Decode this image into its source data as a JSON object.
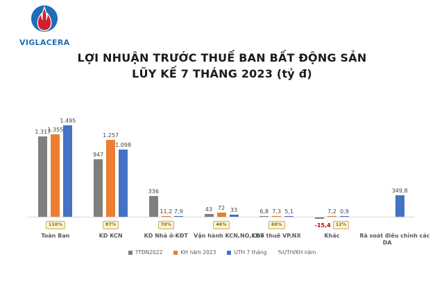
{
  "logo": {
    "text": "VIGLACERA"
  },
  "title": {
    "line1": "LỢI NHUẬN TRƯỚC THUẾ BAN BẤT ĐỘNG SẢN",
    "line2": "LŨY KẾ 7 THÁNG 2023 (tỷ đ)"
  },
  "chart_data": {
    "type": "bar",
    "title": "LỢI NHUẬN TRƯỚC THUẾ BAN BẤT ĐỘNG SẢN LŨY KẾ 7 THÁNG 2023 (tỷ đ)",
    "unit": "tỷ đ",
    "categories": [
      "Toàn Ban",
      "KD KCN",
      "KD Nhà ở-KĐT",
      "Vận hành KCN,NO,KĐT",
      "Cho thuê VP,NX",
      "Khác",
      "Rà soát điều chỉnh các\nDA"
    ],
    "series": [
      {
        "name": "7TĐN2022",
        "color": "#7f7f7f",
        "values": [
          1317,
          947,
          336,
          43,
          6.8,
          -15.4,
          null
        ]
      },
      {
        "name": "KH năm 2023",
        "color": "#ed7d31",
        "values": [
          1355,
          1257,
          11.2,
          72,
          7.3,
          7.2,
          null
        ]
      },
      {
        "name": "UTH 7 tháng",
        "color": "#4472c4",
        "values": [
          1495,
          1098,
          7.9,
          33,
          5.1,
          0.9,
          349.8
        ]
      }
    ],
    "value_labels": [
      [
        "1.317",
        "1.355",
        "1.495"
      ],
      [
        "947",
        "1.257",
        "1.098"
      ],
      [
        "336",
        "11,2",
        "7,9"
      ],
      [
        "43",
        "72",
        "33"
      ],
      [
        "6,8",
        "7,3",
        "5,1"
      ],
      [
        "-15,4",
        "7,2",
        "0,9"
      ],
      [
        null,
        null,
        "349,8"
      ]
    ],
    "badges": [
      "110%",
      "87%",
      "70%",
      "46%",
      "69%",
      "12%",
      null
    ],
    "badge_legend_label": "%UTH/KH năm",
    "negative_label_color": "#c00000",
    "ylim": [
      -20,
      1600
    ],
    "grid": false,
    "legend_position": "bottom"
  }
}
